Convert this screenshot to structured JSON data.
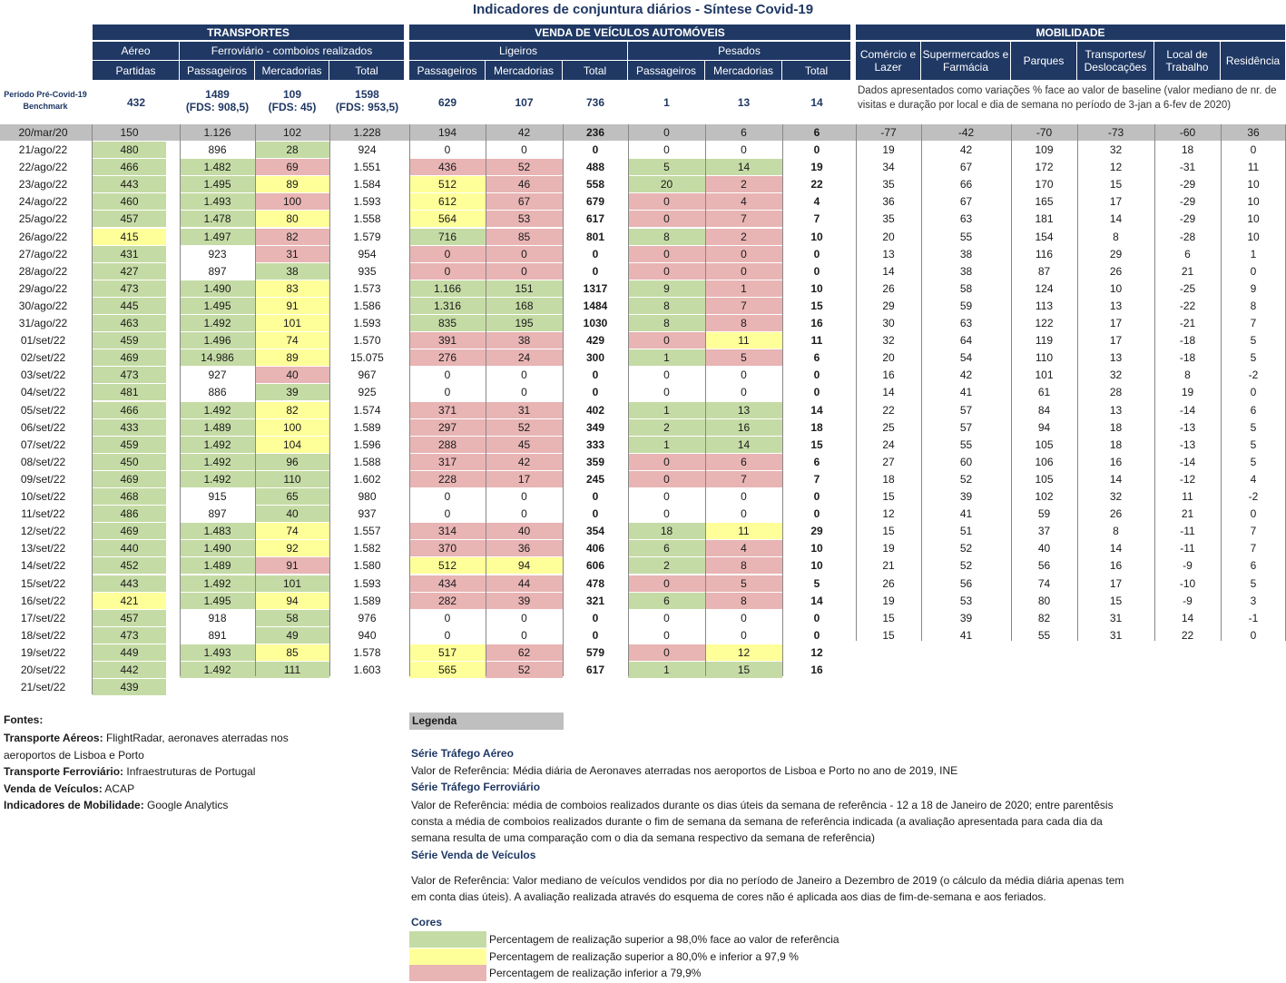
{
  "title": "Indicadores de conjuntura diários - Síntese Covid-19",
  "headers": {
    "transportes": "TRANSPORTES",
    "venda": "VENDA DE VEÍCULOS AUTOMÓVEIS",
    "mobilidade": "MOBILIDADE",
    "aereo": "Aéreo",
    "ferroviario": "Ferroviário - comboios realizados",
    "ligeiros": "Ligeiros",
    "pesados": "Pesados",
    "partidas": "Partidas",
    "passageiros": "Passageiros",
    "mercadorias": "Mercadorias",
    "total": "Total",
    "mob_cols": [
      "Comércio e Lazer",
      "Supermercados e Farmácia",
      "Parques",
      "Transportes/ Deslocações",
      "Local de Trabalho",
      "Residência"
    ]
  },
  "benchmark": {
    "label": "Período Pré-Covid-19 Benchmark",
    "aereo": "432",
    "f_pass": "1489",
    "f_pass_fds": "(FDS: 908,5)",
    "f_merc": "109",
    "f_merc_fds": "(FDS: 45)",
    "f_total": "1598",
    "f_total_fds": "(FDS: 953,5)",
    "l_pass": "629",
    "l_merc": "107",
    "l_total": "736",
    "p_pass": "1",
    "p_merc": "13",
    "p_total": "14",
    "mob_note": "Dados apresentados como variações % face ao valor de baseline (valor mediano de nr. de visitas e duração por local e dia de semana no período de 3-jan a 6-fev de 2020)"
  },
  "ref_row": {
    "date": "20/mar/20",
    "values": [
      "150",
      "1.126",
      "102",
      "1.228",
      "194",
      "42",
      "236",
      "0",
      "6",
      "6",
      "-77",
      "-42",
      "-70",
      "-73",
      "-60",
      "36"
    ]
  },
  "rows": [
    {
      "d": "21/ago/22",
      "v": [
        "480",
        "896",
        "28",
        "924",
        "0",
        "0",
        "0",
        "0",
        "0",
        "0",
        "19",
        "42",
        "109",
        "32",
        "18",
        "0"
      ],
      "c": [
        "g",
        "",
        "g",
        "",
        "",
        "",
        "",
        "",
        "",
        "",
        "",
        "",
        "",
        "",
        "",
        ""
      ]
    },
    {
      "d": "22/ago/22",
      "v": [
        "466",
        "1.482",
        "69",
        "1.551",
        "436",
        "52",
        "488",
        "5",
        "14",
        "19",
        "34",
        "67",
        "172",
        "12",
        "-31",
        "11"
      ],
      "c": [
        "g",
        "g",
        "r",
        "",
        "r",
        "r",
        "",
        "g",
        "g",
        "",
        "",
        "",
        "",
        "",
        "",
        ""
      ]
    },
    {
      "d": "23/ago/22",
      "v": [
        "443",
        "1.495",
        "89",
        "1.584",
        "512",
        "46",
        "558",
        "20",
        "2",
        "22",
        "35",
        "66",
        "170",
        "15",
        "-29",
        "10"
      ],
      "c": [
        "g",
        "g",
        "y",
        "",
        "y",
        "r",
        "",
        "g",
        "r",
        "",
        "",
        "",
        "",
        "",
        "",
        ""
      ]
    },
    {
      "d": "24/ago/22",
      "v": [
        "460",
        "1.493",
        "100",
        "1.593",
        "612",
        "67",
        "679",
        "0",
        "4",
        "4",
        "36",
        "67",
        "165",
        "17",
        "-29",
        "10"
      ],
      "c": [
        "g",
        "g",
        "r",
        "",
        "y",
        "r",
        "",
        "r",
        "r",
        "",
        "",
        "",
        "",
        "",
        "",
        ""
      ]
    },
    {
      "d": "25/ago/22",
      "v": [
        "457",
        "1.478",
        "80",
        "1.558",
        "564",
        "53",
        "617",
        "0",
        "7",
        "7",
        "35",
        "63",
        "181",
        "14",
        "-29",
        "10"
      ],
      "c": [
        "g",
        "g",
        "y",
        "",
        "y",
        "r",
        "",
        "r",
        "r",
        "",
        "",
        "",
        "",
        "",
        "",
        ""
      ]
    },
    {
      "d": "26/ago/22",
      "v": [
        "415",
        "1.497",
        "82",
        "1.579",
        "716",
        "85",
        "801",
        "8",
        "2",
        "10",
        "20",
        "55",
        "154",
        "8",
        "-28",
        "10"
      ],
      "c": [
        "y",
        "g",
        "r",
        "",
        "g",
        "r",
        "",
        "g",
        "r",
        "",
        "",
        "",
        "",
        "",
        "",
        ""
      ]
    },
    {
      "d": "27/ago/22",
      "v": [
        "431",
        "923",
        "31",
        "954",
        "0",
        "0",
        "0",
        "0",
        "0",
        "0",
        "13",
        "38",
        "116",
        "29",
        "6",
        "1"
      ],
      "c": [
        "g",
        "",
        "r",
        "",
        "r",
        "r",
        "",
        "r",
        "r",
        "",
        "",
        "",
        "",
        "",
        "",
        ""
      ]
    },
    {
      "d": "28/ago/22",
      "v": [
        "427",
        "897",
        "38",
        "935",
        "0",
        "0",
        "0",
        "0",
        "0",
        "0",
        "14",
        "38",
        "87",
        "26",
        "21",
        "0"
      ],
      "c": [
        "g",
        "",
        "g",
        "",
        "r",
        "r",
        "",
        "r",
        "r",
        "",
        "",
        "",
        "",
        "",
        "",
        ""
      ]
    },
    {
      "d": "29/ago/22",
      "v": [
        "473",
        "1.490",
        "83",
        "1.573",
        "1.166",
        "151",
        "1317",
        "9",
        "1",
        "10",
        "26",
        "58",
        "124",
        "10",
        "-25",
        "9"
      ],
      "c": [
        "g",
        "g",
        "y",
        "",
        "g",
        "g",
        "",
        "g",
        "r",
        "",
        "",
        "",
        "",
        "",
        "",
        ""
      ]
    },
    {
      "d": "30/ago/22",
      "v": [
        "445",
        "1.495",
        "91",
        "1.586",
        "1.316",
        "168",
        "1484",
        "8",
        "7",
        "15",
        "29",
        "59",
        "113",
        "13",
        "-22",
        "8"
      ],
      "c": [
        "g",
        "g",
        "y",
        "",
        "g",
        "g",
        "",
        "g",
        "r",
        "",
        "",
        "",
        "",
        "",
        "",
        ""
      ]
    },
    {
      "d": "31/ago/22",
      "v": [
        "463",
        "1.492",
        "101",
        "1.593",
        "835",
        "195",
        "1030",
        "8",
        "8",
        "16",
        "30",
        "63",
        "122",
        "17",
        "-21",
        "7"
      ],
      "c": [
        "g",
        "g",
        "y",
        "",
        "g",
        "g",
        "",
        "g",
        "r",
        "",
        "",
        "",
        "",
        "",
        "",
        ""
      ]
    },
    {
      "d": "01/set/22",
      "v": [
        "459",
        "1.496",
        "74",
        "1.570",
        "391",
        "38",
        "429",
        "0",
        "11",
        "11",
        "32",
        "64",
        "119",
        "17",
        "-18",
        "5"
      ],
      "c": [
        "g",
        "g",
        "y",
        "",
        "r",
        "r",
        "",
        "r",
        "y",
        "",
        "",
        "",
        "",
        "",
        "",
        ""
      ]
    },
    {
      "d": "02/set/22",
      "v": [
        "469",
        "14.986",
        "89",
        "15.075",
        "276",
        "24",
        "300",
        "1",
        "5",
        "6",
        "20",
        "54",
        "110",
        "13",
        "-18",
        "5"
      ],
      "c": [
        "g",
        "g",
        "y",
        "",
        "r",
        "r",
        "",
        "g",
        "r",
        "",
        "",
        "",
        "",
        "",
        "",
        ""
      ]
    },
    {
      "d": "03/set/22",
      "v": [
        "473",
        "927",
        "40",
        "967",
        "0",
        "0",
        "0",
        "0",
        "0",
        "0",
        "16",
        "42",
        "101",
        "32",
        "8",
        "-2"
      ],
      "c": [
        "g",
        "",
        "r",
        "",
        "",
        "",
        "",
        "",
        "",
        "",
        "",
        "",
        "",
        "",
        "",
        ""
      ]
    },
    {
      "d": "04/set/22",
      "v": [
        "481",
        "886",
        "39",
        "925",
        "0",
        "0",
        "0",
        "0",
        "0",
        "0",
        "14",
        "41",
        "61",
        "28",
        "19",
        "0"
      ],
      "c": [
        "g",
        "",
        "g",
        "",
        "",
        "",
        "",
        "",
        "",
        "",
        "",
        "",
        "",
        "",
        "",
        ""
      ]
    },
    {
      "d": "05/set/22",
      "v": [
        "466",
        "1.492",
        "82",
        "1.574",
        "371",
        "31",
        "402",
        "1",
        "13",
        "14",
        "22",
        "57",
        "84",
        "13",
        "-14",
        "6"
      ],
      "c": [
        "g",
        "g",
        "y",
        "",
        "r",
        "r",
        "",
        "g",
        "g",
        "",
        "",
        "",
        "",
        "",
        "",
        ""
      ]
    },
    {
      "d": "06/set/22",
      "v": [
        "433",
        "1.489",
        "100",
        "1.589",
        "297",
        "52",
        "349",
        "2",
        "16",
        "18",
        "25",
        "57",
        "94",
        "18",
        "-13",
        "5"
      ],
      "c": [
        "g",
        "g",
        "y",
        "",
        "r",
        "r",
        "",
        "g",
        "g",
        "",
        "",
        "",
        "",
        "",
        "",
        ""
      ]
    },
    {
      "d": "07/set/22",
      "v": [
        "459",
        "1.492",
        "104",
        "1.596",
        "288",
        "45",
        "333",
        "1",
        "14",
        "15",
        "24",
        "55",
        "105",
        "18",
        "-13",
        "5"
      ],
      "c": [
        "g",
        "g",
        "y",
        "",
        "r",
        "r",
        "",
        "g",
        "g",
        "",
        "",
        "",
        "",
        "",
        "",
        ""
      ]
    },
    {
      "d": "08/set/22",
      "v": [
        "450",
        "1.492",
        "96",
        "1.588",
        "317",
        "42",
        "359",
        "0",
        "6",
        "6",
        "27",
        "60",
        "106",
        "16",
        "-14",
        "5"
      ],
      "c": [
        "g",
        "g",
        "g",
        "",
        "r",
        "r",
        "",
        "r",
        "r",
        "",
        "",
        "",
        "",
        "",
        "",
        ""
      ]
    },
    {
      "d": "09/set/22",
      "v": [
        "469",
        "1.492",
        "110",
        "1.602",
        "228",
        "17",
        "245",
        "0",
        "7",
        "7",
        "18",
        "52",
        "105",
        "14",
        "-12",
        "4"
      ],
      "c": [
        "g",
        "g",
        "g",
        "",
        "r",
        "r",
        "",
        "r",
        "r",
        "",
        "",
        "",
        "",
        "",
        "",
        ""
      ]
    },
    {
      "d": "10/set/22",
      "v": [
        "468",
        "915",
        "65",
        "980",
        "0",
        "0",
        "0",
        "0",
        "0",
        "0",
        "15",
        "39",
        "102",
        "32",
        "11",
        "-2"
      ],
      "c": [
        "g",
        "",
        "g",
        "",
        "",
        "",
        "",
        "",
        "",
        "",
        "",
        "",
        "",
        "",
        "",
        ""
      ]
    },
    {
      "d": "11/set/22",
      "v": [
        "486",
        "897",
        "40",
        "937",
        "0",
        "0",
        "0",
        "0",
        "0",
        "0",
        "12",
        "41",
        "59",
        "26",
        "21",
        "0"
      ],
      "c": [
        "g",
        "",
        "g",
        "",
        "",
        "",
        "",
        "",
        "",
        "",
        "",
        "",
        "",
        "",
        "",
        ""
      ]
    },
    {
      "d": "12/set/22",
      "v": [
        "469",
        "1.483",
        "74",
        "1.557",
        "314",
        "40",
        "354",
        "18",
        "11",
        "29",
        "15",
        "51",
        "37",
        "8",
        "-11",
        "7"
      ],
      "c": [
        "g",
        "g",
        "y",
        "",
        "r",
        "r",
        "",
        "g",
        "y",
        "",
        "",
        "",
        "",
        "",
        "",
        ""
      ]
    },
    {
      "d": "13/set/22",
      "v": [
        "440",
        "1.490",
        "92",
        "1.582",
        "370",
        "36",
        "406",
        "6",
        "4",
        "10",
        "19",
        "52",
        "40",
        "14",
        "-11",
        "7"
      ],
      "c": [
        "g",
        "g",
        "y",
        "",
        "r",
        "r",
        "",
        "g",
        "r",
        "",
        "",
        "",
        "",
        "",
        "",
        ""
      ]
    },
    {
      "d": "14/set/22",
      "v": [
        "452",
        "1.489",
        "91",
        "1.580",
        "512",
        "94",
        "606",
        "2",
        "8",
        "10",
        "21",
        "52",
        "56",
        "16",
        "-9",
        "6"
      ],
      "c": [
        "g",
        "g",
        "r",
        "",
        "y",
        "y",
        "",
        "g",
        "r",
        "",
        "",
        "",
        "",
        "",
        "",
        ""
      ]
    },
    {
      "d": "15/set/22",
      "v": [
        "443",
        "1.492",
        "101",
        "1.593",
        "434",
        "44",
        "478",
        "0",
        "5",
        "5",
        "26",
        "56",
        "74",
        "17",
        "-10",
        "5"
      ],
      "c": [
        "g",
        "g",
        "g",
        "",
        "r",
        "r",
        "",
        "r",
        "r",
        "",
        "",
        "",
        "",
        "",
        "",
        ""
      ]
    },
    {
      "d": "16/set/22",
      "v": [
        "421",
        "1.495",
        "94",
        "1.589",
        "282",
        "39",
        "321",
        "6",
        "8",
        "14",
        "19",
        "53",
        "80",
        "15",
        "-9",
        "3"
      ],
      "c": [
        "y",
        "g",
        "y",
        "",
        "r",
        "r",
        "",
        "g",
        "r",
        "",
        "",
        "",
        "",
        "",
        "",
        ""
      ]
    },
    {
      "d": "17/set/22",
      "v": [
        "457",
        "918",
        "58",
        "976",
        "0",
        "0",
        "0",
        "0",
        "0",
        "0",
        "15",
        "39",
        "82",
        "31",
        "14",
        "-1"
      ],
      "c": [
        "g",
        "",
        "g",
        "",
        "",
        "",
        "",
        "",
        "",
        "",
        "",
        "",
        "",
        "",
        "",
        ""
      ]
    },
    {
      "d": "18/set/22",
      "v": [
        "473",
        "891",
        "49",
        "940",
        "0",
        "0",
        "0",
        "0",
        "0",
        "0",
        "15",
        "41",
        "55",
        "31",
        "22",
        "0"
      ],
      "c": [
        "g",
        "",
        "g",
        "",
        "",
        "",
        "",
        "",
        "",
        "",
        "",
        "",
        "",
        "",
        "",
        ""
      ]
    },
    {
      "d": "19/set/22",
      "v": [
        "449",
        "1.493",
        "85",
        "1.578",
        "517",
        "62",
        "579",
        "0",
        "12",
        "12",
        "",
        "",
        "",
        "",
        "",
        ""
      ],
      "c": [
        "g",
        "g",
        "y",
        "",
        "y",
        "r",
        "",
        "r",
        "y",
        "",
        "",
        "",
        "",
        "",
        "",
        ""
      ]
    },
    {
      "d": "20/set/22",
      "v": [
        "442",
        "1.492",
        "111",
        "1.603",
        "565",
        "52",
        "617",
        "1",
        "15",
        "16",
        "",
        "",
        "",
        "",
        "",
        ""
      ],
      "c": [
        "g",
        "g",
        "g",
        "",
        "y",
        "r",
        "",
        "g",
        "g",
        "",
        "",
        "",
        "",
        "",
        "",
        ""
      ]
    },
    {
      "d": "21/set/22",
      "v": [
        "439",
        "",
        "",
        "",
        "",
        "",
        "",
        "",
        "",
        "",
        "",
        "",
        "",
        "",
        "",
        ""
      ],
      "c": [
        "g",
        "",
        "",
        "",
        "",
        "",
        "",
        "",
        "",
        "",
        "",
        "",
        "",
        "",
        "",
        ""
      ]
    }
  ],
  "fontes": {
    "title": "Fontes:",
    "items": [
      {
        "k": "Transporte Aéreos:",
        "v": "FlightRadar, aeronaves aterradas nos"
      },
      {
        "k": "",
        "v": "aeroportos de Lisboa e Porto"
      },
      {
        "k": "Transporte Ferroviário:",
        "v": "Infraestruturas de Portugal"
      },
      {
        "k": "Venda de Veículos:",
        "v": "ACAP"
      },
      {
        "k": "Indicadores de Mobilidade:",
        "v": "Google Analytics"
      }
    ]
  },
  "legenda": {
    "title": "Legenda",
    "s1_title": "Série Tráfego Aéreo",
    "s1_text": "Valor de Referência: Média diária de Aeronaves aterradas nos aeroportos de Lisboa e Porto no ano de 2019, INE",
    "s2_title": "Série Tráfego Ferroviário",
    "s2_l1": "Valor de Referência: média de comboios realizados durante os dias úteis da semana de referência - 12 a 18 de Janeiro de 2020; entre parentêsis",
    "s2_l2": "consta a média de comboios realizados durante o fim de semana da semana de referência indicada (a avaliação apresentada para cada dia da",
    "s2_l3": "semana resulta de uma comparação com o dia da semana respectivo da semana de referência)",
    "s3_title": "Série Venda de Veículos",
    "s3_l1": "Valor de Referência: Valor mediano de veículos vendidos por dia no período de Janeiro a Dezembro de 2019 (o cálculo da média diária apenas tem",
    "s3_l2": "em conta dias úteis). A avaliação realizada através do esquema de cores não é aplicada aos dias de fim-de-semana e aos feriados.",
    "cores_title": "Cores",
    "c1": "Percentagem de realização superior a 98,0% face ao valor de referência",
    "c2": "Percentagem de realização superior a 80,0% e inferior a 97,9 %",
    "c3": "Percentagem de realização inferior a 79,9%",
    "colors": {
      "green": "#c5dba5",
      "yellow": "#ffff99",
      "red": "#e8b4b4",
      "header": "#1f3864"
    }
  }
}
